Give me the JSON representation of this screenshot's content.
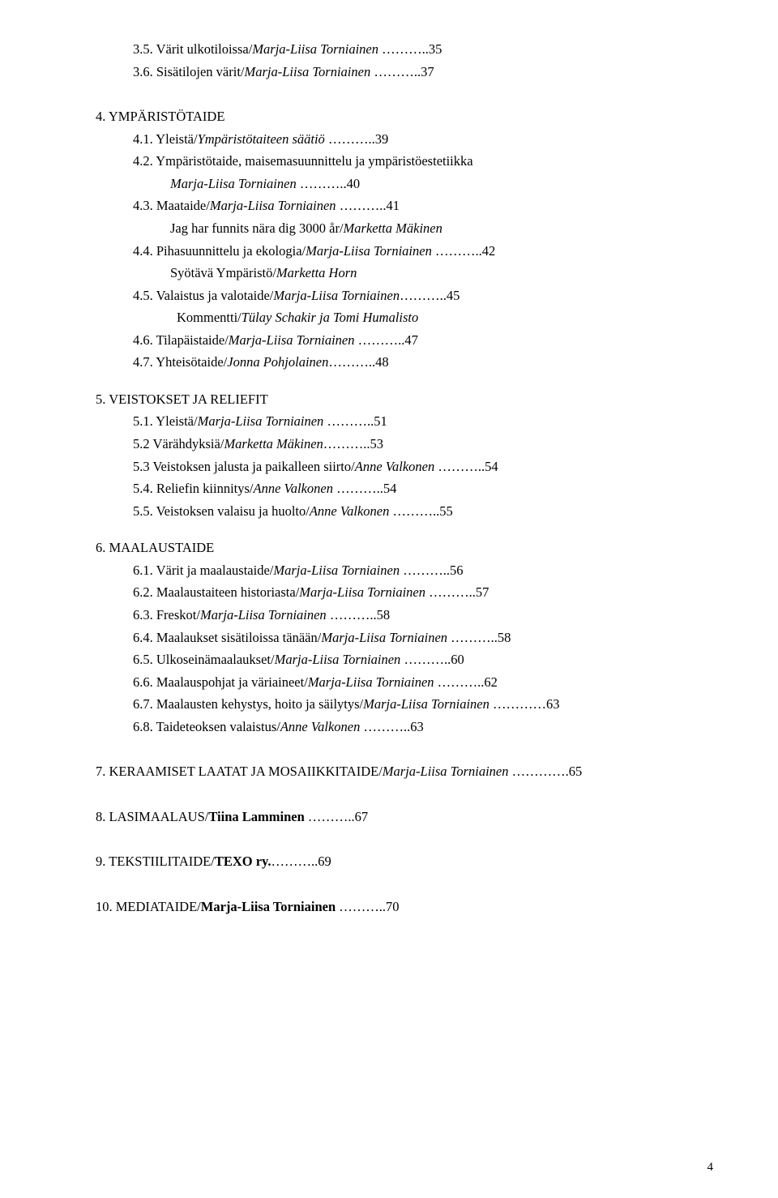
{
  "l1": {
    "pre": "3.5. Värit ulkotiloissa/",
    "em": "Marja-Liisa Torniainen",
    "post": " ………..35"
  },
  "l2": {
    "pre": "3.6. Sisätilojen värit/",
    "em": "Marja-Liisa Torniainen",
    "post": " ………..37"
  },
  "l3": {
    "pre": "4. YMPÄRISTÖTAIDE"
  },
  "l4": {
    "pre": "4.1. Yleistä/",
    "em": "Ympäristötaiteen säätiö",
    "post": " ………..39"
  },
  "l5": {
    "pre": "4.2. Ympäristötaide, maisemasuunnittelu ja ympäristöestetiikka"
  },
  "l6": {
    "em": "Marja-Liisa Torniainen",
    "post": " ………..40"
  },
  "l7": {
    "pre": "4.3. Maataide/",
    "em": "Marja-Liisa Torniainen",
    "post": " ………..41"
  },
  "l8": {
    "pre": "Jag har funnits nära dig 3000 år/",
    "em": "Marketta Mäkinen"
  },
  "l9": {
    "pre": "4.4. Pihasuunnittelu ja ekologia/",
    "em": "Marja-Liisa Torniainen",
    "post": " ………..42"
  },
  "l10": {
    "pre": "Syötävä Ympäristö/",
    "em": "Marketta Horn"
  },
  "l11": {
    "pre": "4.5. Valaistus ja valotaide/",
    "em": "Marja-Liisa Torniainen",
    "post": "………..45"
  },
  "l12": {
    "pre": "Kommentti/",
    "em": "Tülay Schakir ja Tomi Humalisto"
  },
  "l13": {
    "pre": "4.6. Tilapäistaide/",
    "em": "Marja-Liisa Torniainen",
    "post": " ………..47"
  },
  "l14": {
    "pre": "4.7. Yhteisötaide/",
    "em": "Jonna Pohjolainen",
    "post": "………..48"
  },
  "l15": {
    "pre": "5.  VEISTOKSET JA RELIEFIT"
  },
  "l16": {
    "pre": "5.1. Yleistä/",
    "em": "Marja-Liisa Torniainen",
    "post": " ………..51"
  },
  "l17": {
    "pre": "5.2 Värähdyksiä/",
    "em": "Marketta Mäkinen",
    "post": "………..53"
  },
  "l18": {
    "pre": "5.3 Veistoksen jalusta ja paikalleen siirto/",
    "em": "Anne Valkonen",
    "post": " ………..54"
  },
  "l19": {
    "pre": "5.4. Reliefin kiinnitys/",
    "em": "Anne Valkonen",
    "post": " ………..54"
  },
  "l20": {
    "pre": "5.5. Veistoksen valaisu ja huolto/",
    "em": "Anne Valkonen",
    "post": " ………..55"
  },
  "l21": {
    "pre": "6. MAALAUSTAIDE"
  },
  "l22": {
    "pre": "6.1.  Värit ja maalaustaide/",
    "em": "Marja-Liisa Torniainen",
    "post": " ………..56"
  },
  "l23": {
    "pre": "6.2.  Maalaustaiteen historiasta/",
    "em": "Marja-Liisa Torniainen",
    "post": " ………..57"
  },
  "l24": {
    "pre": "6.3.  Freskot/",
    "em": "Marja-Liisa Torniainen",
    "post": " ………..58"
  },
  "l25": {
    "pre": "6.4.  Maalaukset sisätiloissa tänään/",
    "em": "Marja-Liisa Torniainen",
    "post": " ………..58"
  },
  "l26": {
    "pre": "6.5.  Ulkoseinämaalaukset/",
    "em": "Marja-Liisa Torniainen",
    "post": " ………..60"
  },
  "l27": {
    "pre": "6.6.  Maalauspohjat ja väriaineet/",
    "em": "Marja-Liisa Torniainen",
    "post": " ………..62"
  },
  "l28": {
    "pre": "6.7.  Maalausten kehystys, hoito ja säilytys/",
    "em": "Marja-Liisa Torniainen",
    "post": " …………63"
  },
  "l29": {
    "pre": "6.8.  Taideteoksen valaistus/",
    "em": "Anne Valkonen",
    "post": " ………..63"
  },
  "l30": {
    "pre": "7. KERAAMISET LAATAT JA MOSAIIKKITAIDE/",
    "em": "Marja-Liisa Torniainen",
    "post": " ………….65"
  },
  "l31": {
    "pre": "8. LASIMAALAUS/",
    "bold": "Tiina Lamminen",
    "post": " ………..67"
  },
  "l32": {
    "pre": "9. TEKSTIILITAIDE/",
    "bold": "TEXO ry.",
    "post": "………..69"
  },
  "l33": {
    "pre": "10. MEDIATAIDE/",
    "bold": "Marja-Liisa Torniainen",
    "post": " ………..70"
  },
  "pagenum": "4"
}
